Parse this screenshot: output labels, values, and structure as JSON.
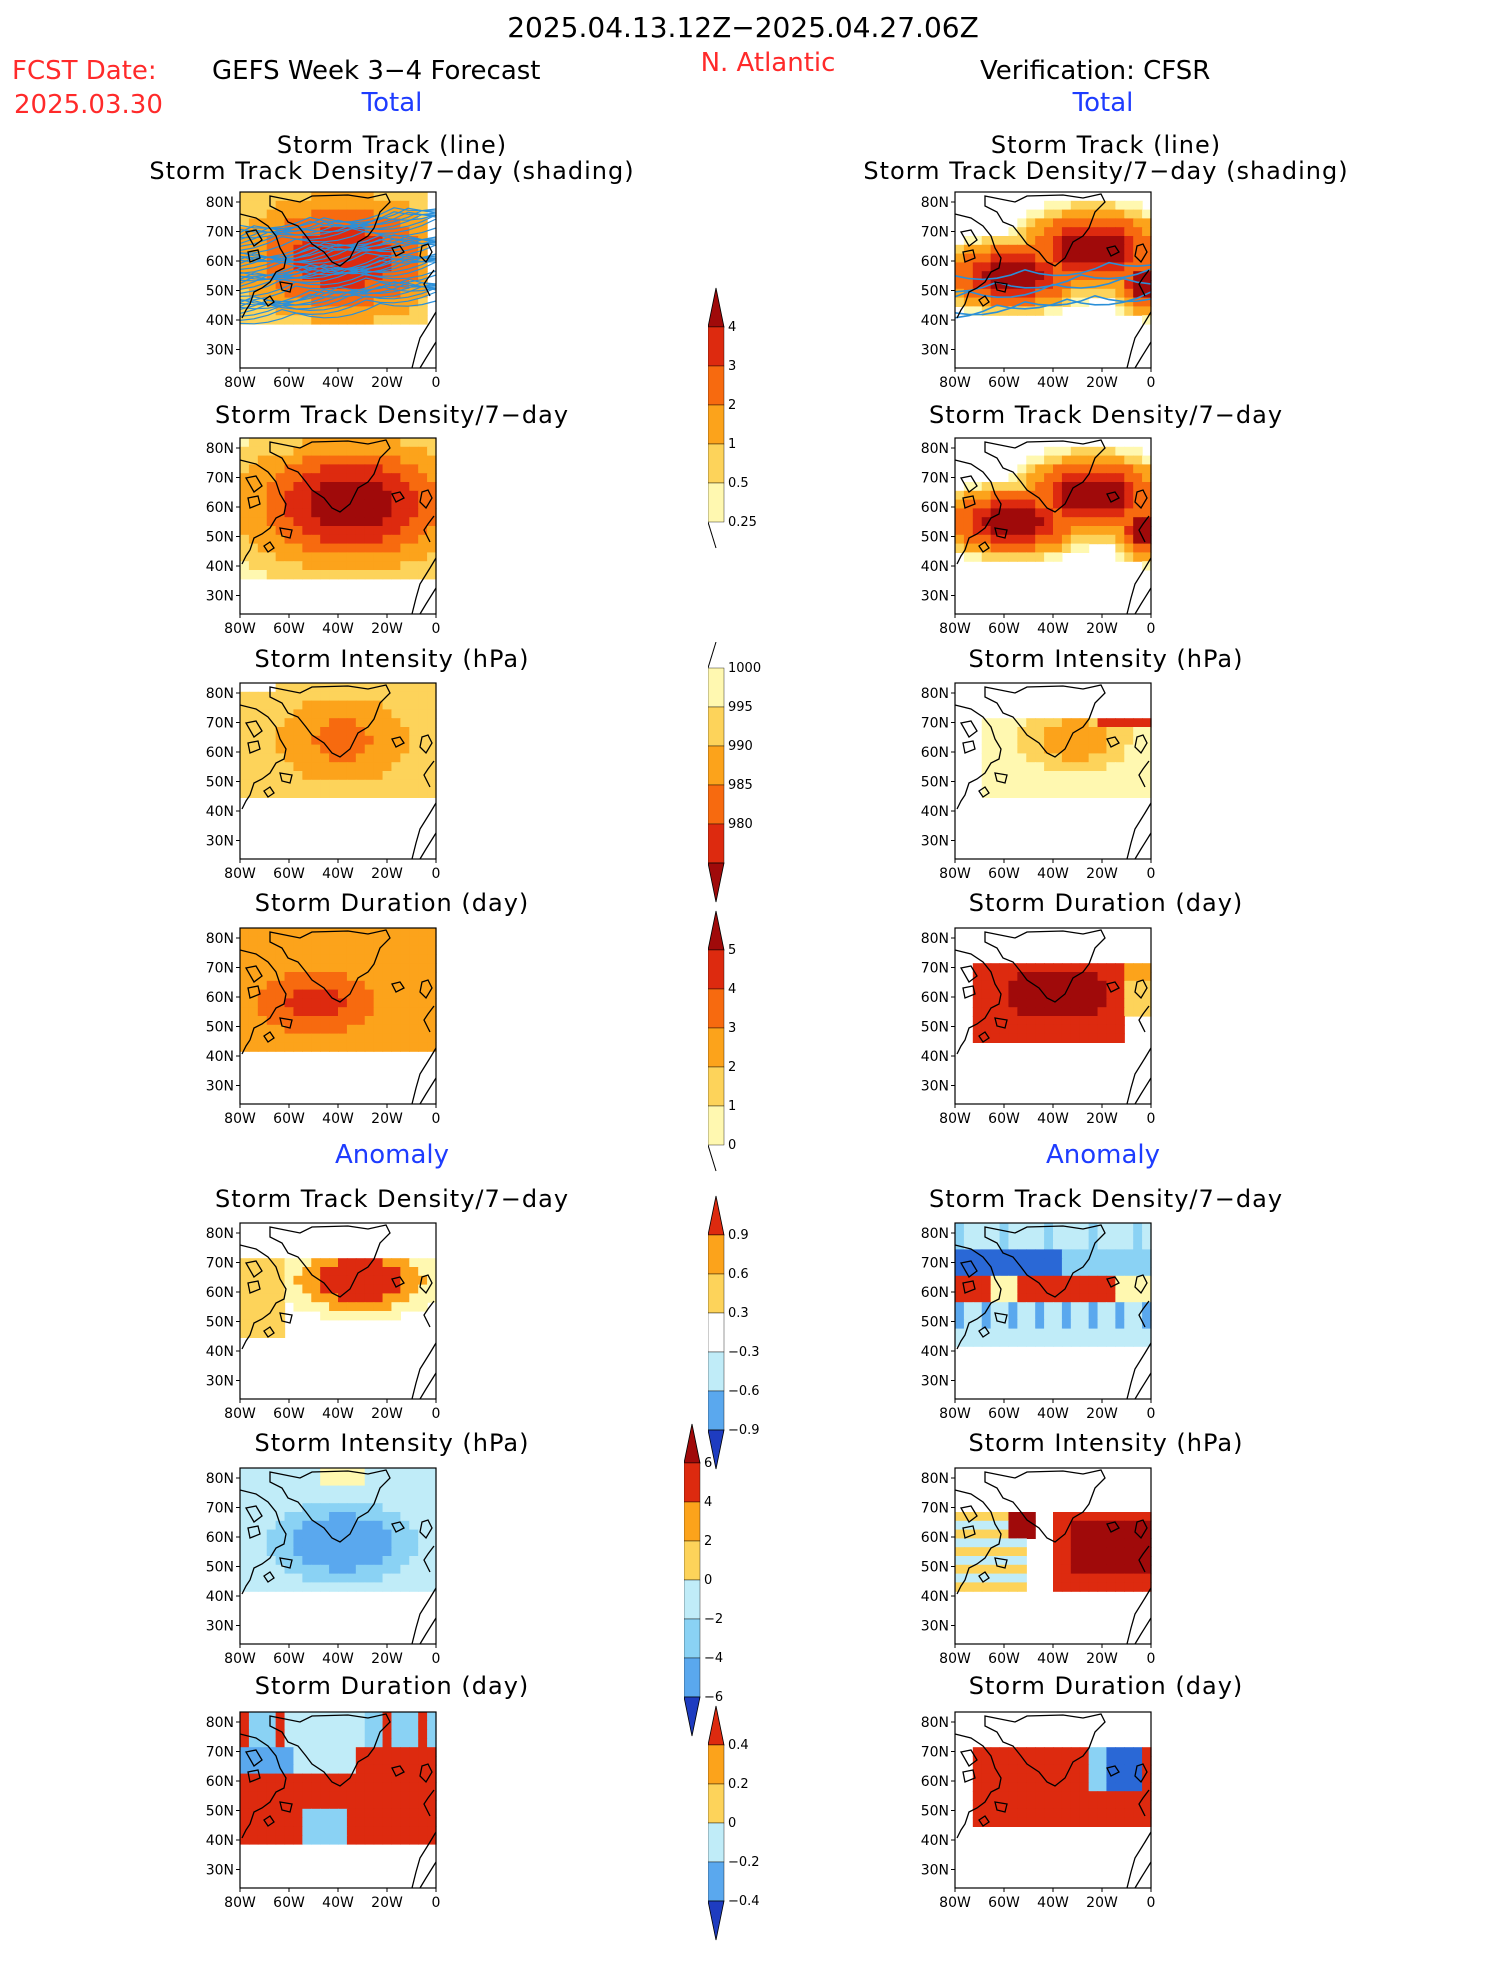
{
  "header": {
    "date_range": "2025.04.13.12Z−2025.04.27.06Z",
    "fcst_label": "FCST Date:",
    "fcst_date": "2025.03.30",
    "left_title": "GEFS Week 3−4 Forecast",
    "region": "N. Atlantic",
    "right_title": "Verification: CFSR"
  },
  "sections": {
    "total": "Total",
    "anomaly": "Anomaly"
  },
  "panel_titles": {
    "track_line": "Storm Track (line)",
    "track_shading": "Storm Track Density/7−day (shading)",
    "density": "Storm Track Density/7−day",
    "intensity": "Storm Intensity (hPa)",
    "duration": "Storm Duration (day)"
  },
  "axes": {
    "lat_labels": [
      "80N",
      "70N",
      "60N",
      "50N",
      "40N",
      "30N"
    ],
    "lon_labels": [
      "80W",
      "60W",
      "40W",
      "20W",
      "0"
    ]
  },
  "colorbars": {
    "density": [
      "4",
      "3",
      "2",
      "1",
      "0.5",
      "0.25"
    ],
    "intensity": [
      "1000",
      "995",
      "990",
      "985",
      "980"
    ],
    "duration": [
      "5",
      "4",
      "3",
      "2",
      "1",
      "0"
    ],
    "density_anom": [
      "0.9",
      "0.6",
      "0.3",
      "−0.3",
      "−0.6",
      "−0.9"
    ],
    "intensity_anom": [
      "6",
      "4",
      "2",
      "0",
      "−2",
      "−4",
      "−6"
    ],
    "duration_anom": [
      "0.4",
      "0.2",
      "0",
      "−0.2",
      "−0.4"
    ]
  },
  "colors": {
    "warm": [
      "#fff8b0",
      "#fdd35a",
      "#fca31b",
      "#f76a0f",
      "#dd2a0f",
      "#a00a0a"
    ],
    "cool": [
      "#c0ecf8",
      "#8ad2f4",
      "#5aa8ee",
      "#2a68d6",
      "#1e3cc0"
    ],
    "track_line": "#2b8fd8",
    "title_red": "#ff2a2a",
    "title_blue": "#1e3cff"
  }
}
